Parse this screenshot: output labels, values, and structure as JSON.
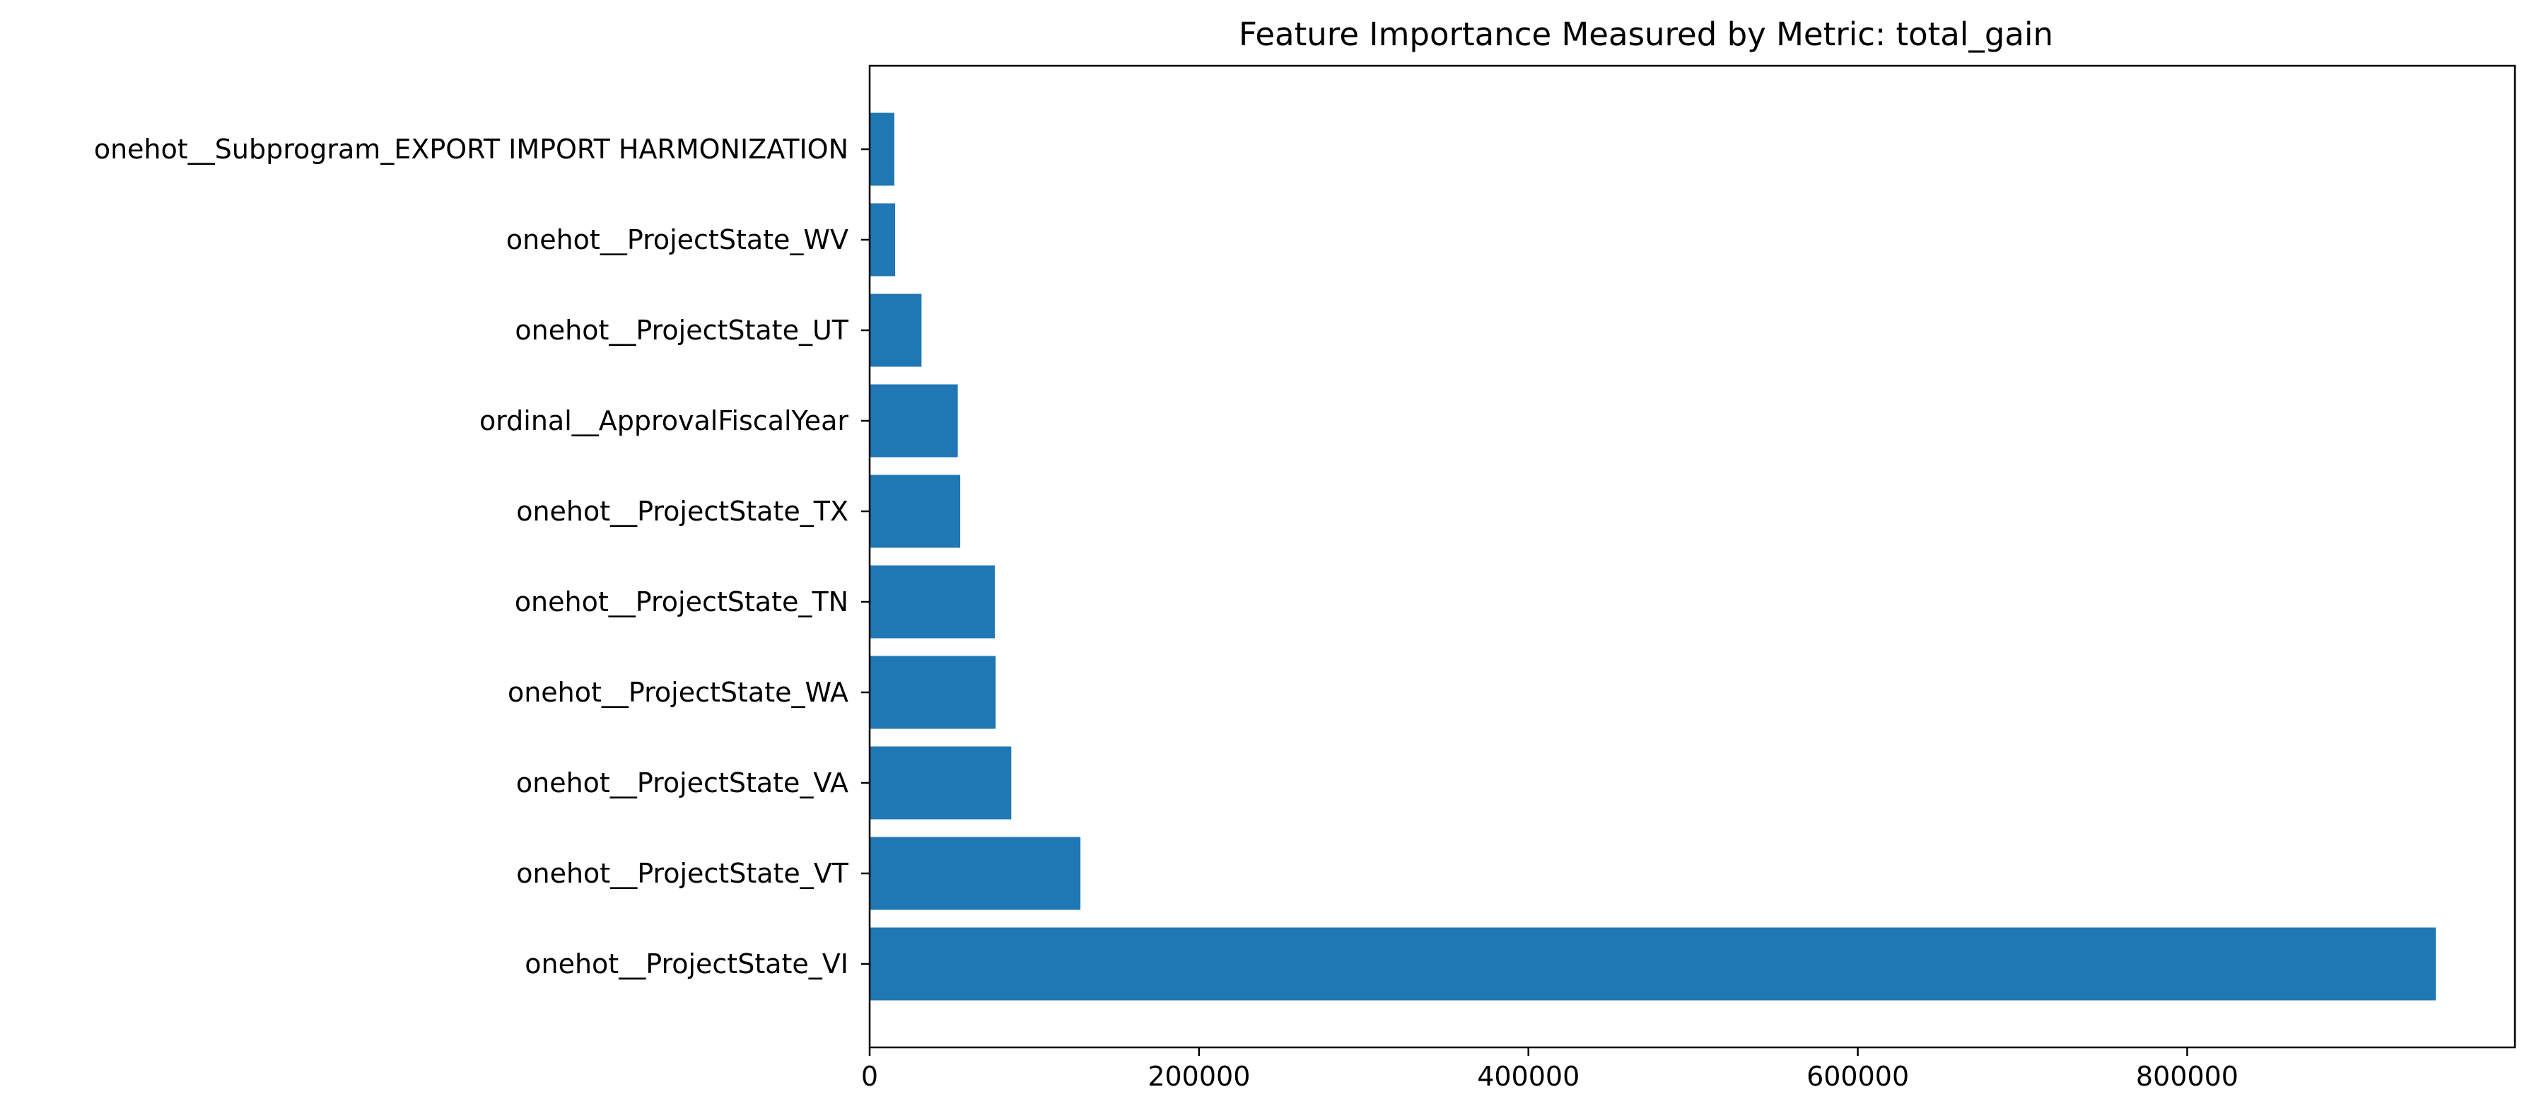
{
  "chart_data": {
    "type": "bar",
    "orientation": "horizontal",
    "title": "Feature Importance Measured by Metric: total_gain",
    "xlabel": "",
    "ylabel": "",
    "categories": [
      "onehot__ProjectState_VI",
      "onehot__ProjectState_VT",
      "onehot__ProjectState_VA",
      "onehot__ProjectState_WA",
      "onehot__ProjectState_TN",
      "onehot__ProjectState_TX",
      "ordinal__ApprovalFiscalYear",
      "onehot__ProjectState_UT",
      "onehot__ProjectState_WV",
      "onehot__Subprogram_EXPORT IMPORT HARMONIZATION"
    ],
    "values": [
      951000,
      128000,
      86000,
      76500,
      76000,
      55000,
      53500,
      31500,
      15500,
      15000
    ],
    "xlim": [
      0,
      999000
    ],
    "xticks": [
      0,
      200000,
      400000,
      600000,
      800000
    ],
    "xtick_labels": [
      "0",
      "200000",
      "400000",
      "600000",
      "800000"
    ],
    "grid": false,
    "legend": "none",
    "bar_color": "#1f77b4"
  }
}
